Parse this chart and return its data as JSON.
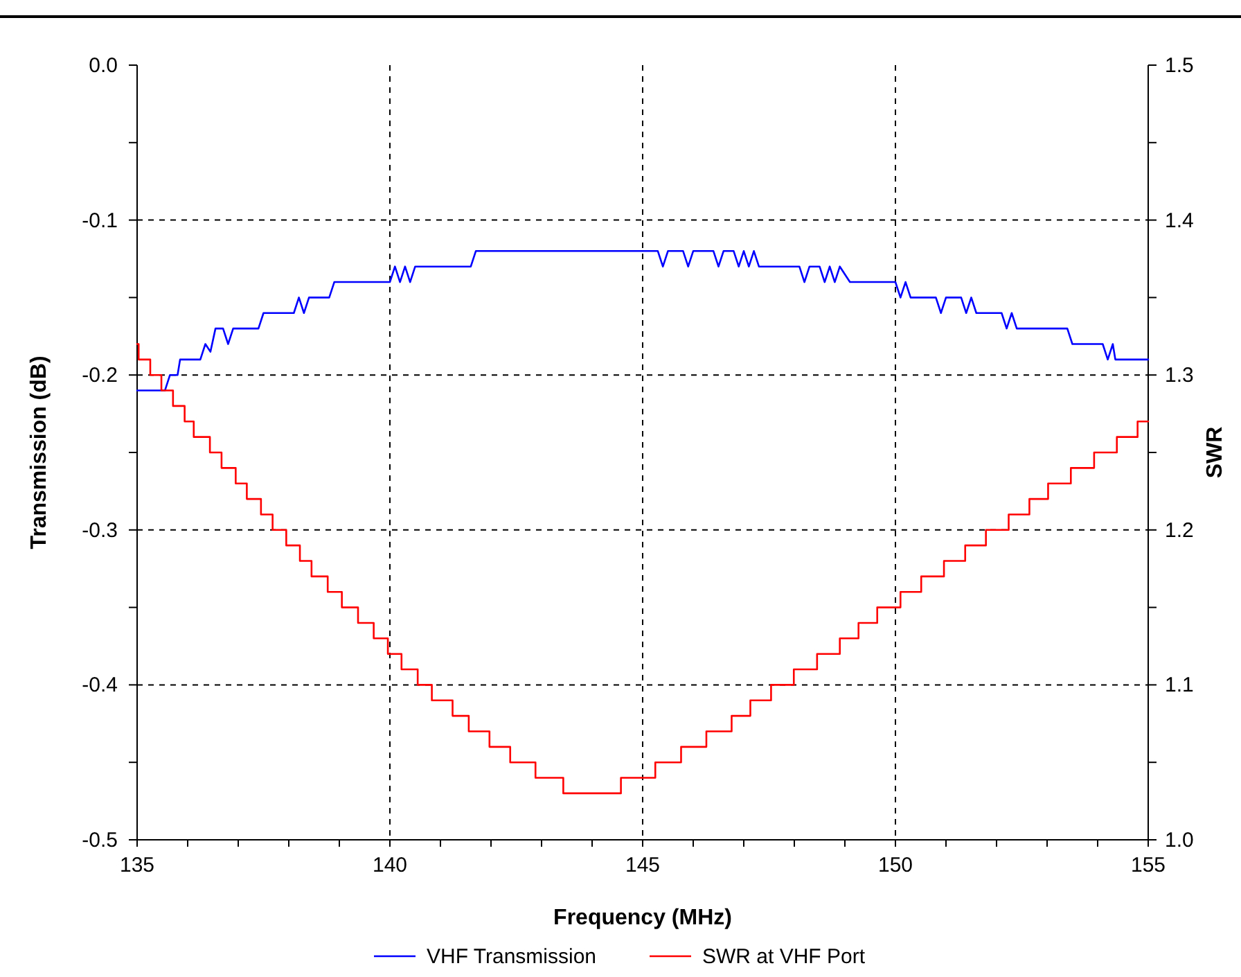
{
  "chart_data": {
    "type": "line",
    "xlabel": "Frequency (MHz)",
    "ylabel": "Transmission (dB)",
    "y2label": "SWR",
    "xlim": [
      135,
      155
    ],
    "xticks": [
      135,
      {
        "value": 136,
        "label": null
      },
      {
        "value": 137,
        "label": null
      },
      {
        "value": 138,
        "label": null
      },
      {
        "value": 139,
        "label": null
      },
      140,
      {
        "value": 141,
        "label": null
      },
      {
        "value": 142,
        "label": null
      },
      {
        "value": 143,
        "label": null
      },
      {
        "value": 144,
        "label": null
      },
      145,
      {
        "value": 146,
        "label": null
      },
      {
        "value": 147,
        "label": null
      },
      {
        "value": 148,
        "label": null
      },
      {
        "value": 149,
        "label": null
      },
      150,
      {
        "value": 151,
        "label": null
      },
      {
        "value": 152,
        "label": null
      },
      {
        "value": 153,
        "label": null
      },
      {
        "value": 154,
        "label": null
      },
      155
    ],
    "ylim": [
      -0.5,
      0
    ],
    "yticks": [
      {
        "value": -0.5,
        "label": "-0.5"
      },
      {
        "value": -0.45,
        "label": null
      },
      -0.4,
      {
        "value": -0.35,
        "label": null
      },
      -0.3,
      {
        "value": -0.25,
        "label": null
      },
      -0.2,
      {
        "value": -0.15,
        "label": null
      },
      -0.1,
      {
        "value": -0.05,
        "label": null
      },
      {
        "value": 0,
        "label": "0.0"
      }
    ],
    "y2lim": [
      1.0,
      1.5
    ],
    "y2ticks": [
      {
        "value": 1.0,
        "label": "1.0"
      },
      {
        "value": 1.05,
        "label": null
      },
      1.1,
      {
        "value": 1.15,
        "label": null
      },
      1.2,
      {
        "value": 1.25,
        "label": null
      },
      1.3,
      {
        "value": 1.35,
        "label": null
      },
      1.4,
      {
        "value": 1.45,
        "label": null
      },
      1.5
    ],
    "grid": true,
    "legend": "bottom",
    "series": [
      {
        "name": "VHF Transmission",
        "color": "#0000ff",
        "x": [
          135,
          135.55,
          135.65,
          135.8,
          135.85,
          136.25,
          136.35,
          136.45,
          136.55,
          136.7,
          136.8,
          136.9,
          137.4,
          137.5,
          138.1,
          138.2,
          138.3,
          138.4,
          138.8,
          138.9,
          140.0,
          140.1,
          140.2,
          140.3,
          140.4,
          140.5,
          141.6,
          141.7,
          145.3,
          145.4,
          145.5,
          145.8,
          145.9,
          146.0,
          146.4,
          146.5,
          146.6,
          146.8,
          146.9,
          147.0,
          147.1,
          147.2,
          147.3,
          148.1,
          148.2,
          148.3,
          148.5,
          148.6,
          148.7,
          148.8,
          148.9,
          149.1,
          150.0,
          150.1,
          150.2,
          150.3,
          150.8,
          150.9,
          151.0,
          151.3,
          151.4,
          151.5,
          151.6,
          152.1,
          152.2,
          152.3,
          152.4,
          153.4,
          153.5,
          154.1,
          154.2,
          154.3,
          154.35,
          155
        ],
        "values": [
          -0.21,
          -0.21,
          -0.2,
          -0.2,
          -0.19,
          -0.19,
          -0.18,
          -0.185,
          -0.17,
          -0.17,
          -0.18,
          -0.17,
          -0.17,
          -0.16,
          -0.16,
          -0.15,
          -0.16,
          -0.15,
          -0.15,
          -0.14,
          -0.14,
          -0.13,
          -0.14,
          -0.13,
          -0.14,
          -0.13,
          -0.13,
          -0.12,
          -0.12,
          -0.13,
          -0.12,
          -0.12,
          -0.13,
          -0.12,
          -0.12,
          -0.13,
          -0.12,
          -0.12,
          -0.13,
          -0.12,
          -0.13,
          -0.12,
          -0.13,
          -0.13,
          -0.14,
          -0.13,
          -0.13,
          -0.14,
          -0.13,
          -0.14,
          -0.13,
          -0.14,
          -0.14,
          -0.15,
          -0.14,
          -0.15,
          -0.15,
          -0.16,
          -0.15,
          -0.15,
          -0.16,
          -0.15,
          -0.16,
          -0.16,
          -0.17,
          -0.16,
          -0.17,
          -0.17,
          -0.18,
          -0.18,
          -0.19,
          -0.18,
          -0.19,
          -0.19
        ]
      },
      {
        "name": "SWR at VHF Port",
        "color": "#ff0000",
        "type": "step",
        "axis": "y2",
        "x": [
          135,
          135.03,
          135.26,
          135.48,
          135.71,
          135.94,
          136.12,
          136.44,
          136.67,
          136.95,
          137.17,
          137.45,
          137.68,
          137.95,
          138.22,
          138.45,
          138.77,
          139.05,
          139.37,
          139.68,
          139.96,
          140.23,
          140.55,
          140.83,
          141.24,
          141.56,
          141.97,
          142.38,
          142.88,
          143.43,
          144.57,
          145.25,
          145.76,
          146.26,
          146.76,
          147.13,
          147.54,
          147.99,
          148.45,
          148.9,
          149.27,
          149.64,
          150.1,
          150.51,
          150.96,
          151.38,
          151.79,
          152.24,
          152.65,
          153.02,
          153.47,
          153.93,
          154.38,
          154.79,
          155
        ],
        "values": [
          1.32,
          1.31,
          1.3,
          1.29,
          1.28,
          1.27,
          1.26,
          1.25,
          1.24,
          1.23,
          1.22,
          1.21,
          1.2,
          1.19,
          1.18,
          1.17,
          1.16,
          1.15,
          1.14,
          1.13,
          1.12,
          1.11,
          1.1,
          1.09,
          1.08,
          1.07,
          1.06,
          1.05,
          1.04,
          1.03,
          1.04,
          1.05,
          1.06,
          1.07,
          1.08,
          1.09,
          1.1,
          1.11,
          1.12,
          1.13,
          1.14,
          1.15,
          1.16,
          1.17,
          1.18,
          1.19,
          1.2,
          1.21,
          1.22,
          1.23,
          1.24,
          1.25,
          1.26,
          1.27,
          1.27
        ]
      }
    ]
  }
}
